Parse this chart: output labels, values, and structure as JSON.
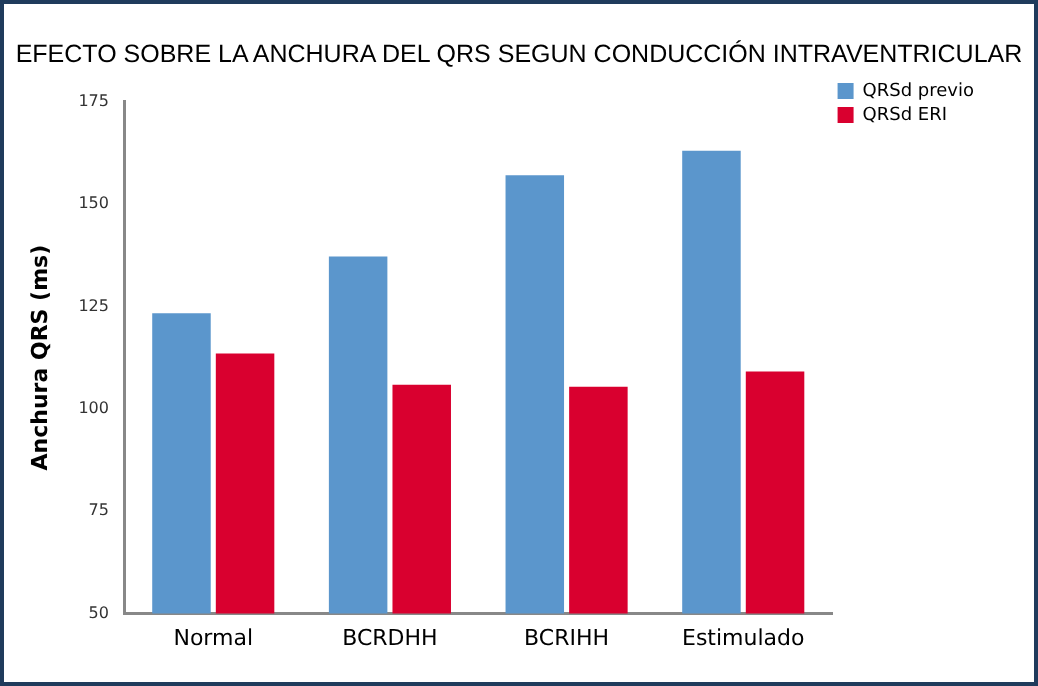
{
  "chart_data": {
    "type": "bar",
    "title": "EFECTO SOBRE LA ANCHURA DEL QRS SEGUN CONDUCCIÓN INTRAVENTRICULAR",
    "ylabel": "Anchura QRS (ms)",
    "categories": [
      "Normal",
      "BCRDHH",
      "BCRIHH",
      "Estimulado"
    ],
    "series": [
      {
        "name": "QRSd previo",
        "color": "#5b96cc",
        "values": [
          123.3,
          137.2,
          157,
          163
        ]
      },
      {
        "name": "QRSd ERI",
        "color": "#d9002f",
        "values": [
          113.5,
          105.9,
          105.4,
          109.1
        ]
      }
    ],
    "ylim": [
      50,
      175
    ],
    "yticks": [
      50,
      75,
      100,
      125,
      150,
      175
    ],
    "grid": false,
    "legend": "right"
  }
}
